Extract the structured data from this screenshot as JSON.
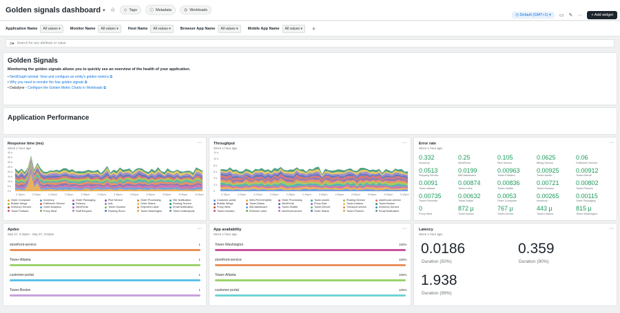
{
  "header": {
    "title": "Golden signals dashboard",
    "tags": "Tags",
    "metadata": "Metadata",
    "workloads": "Workloads",
    "timezone": "Default (GMT+1)",
    "add_widget": "+ Add widget"
  },
  "filters": [
    {
      "label": "Application Name",
      "value": "All values"
    },
    {
      "label": "Monitor Name",
      "value": "All values"
    },
    {
      "label": "Host Name",
      "value": "All values"
    },
    {
      "label": "Browser App Name",
      "value": "All values"
    },
    {
      "label": "Mobile App Name",
      "value": "All values"
    }
  ],
  "search": {
    "placeholder": "Search for any attribute or value"
  },
  "golden": {
    "title": "Golden Signals",
    "subtitle": "Monitoring the golden signals allows you to quickly see an overview of the health of your application.",
    "links": [
      {
        "text": "NerdGraph tutorial: View and configure an entity's golden metrics"
      },
      {
        "text": "Why you need to monitor the four golden signals"
      },
      {
        "prefix": "Datadyne - ",
        "text": "Configure the Golden Metric Charts in Workloads"
      }
    ]
  },
  "section": {
    "title": "Application Performance"
  },
  "response": {
    "title": "Response time (ms)",
    "since": "Since 1 hour ago",
    "yticks": [
      "40 k",
      "35 k",
      "30 k",
      "25 k",
      "20 k",
      "15 k",
      "10 k",
      "5 k",
      "0 k"
    ],
    "xticks": [
      "2:15pm",
      "2:20pm",
      "2:25pm",
      "2:30pm",
      "2:35pm",
      "2:40pm",
      "2:45pm",
      "2:50pm",
      "2:55pm",
      "3:00pm",
      "3:05pm",
      "3:10pm"
    ],
    "legend": [
      "Order Composer",
      "Inventory",
      "Order Packaging",
      "Pilot Service",
      "Order Processing",
      "Site Notification",
      "Builder Wings",
      "Fulfillment Service",
      "Delivery",
      "Ads",
      "Order Status",
      "Routing Service",
      "Inventory Service",
      "Order Analytics",
      "WebPortal",
      "Tower Houston",
      "Shipment Label",
      "Email Notification",
      "Tower Portland",
      "Proxy West",
      "Staff Request",
      "Packing Room",
      "Tower Washington",
      "Tower Indianapolis"
    ],
    "legend_colors": [
      "#e8a33d",
      "#5b8fd6",
      "#c95d9b",
      "#7a5ea6",
      "#e37b4f",
      "#3aa6a0",
      "#9bbf3c",
      "#d05f5f",
      "#4d5fb3",
      "#8e7cc3",
      "#e2c044",
      "#2f8f6f",
      "#b1562b",
      "#5aa1d8",
      "#a56cc1",
      "#6bb86b",
      "#d98c3f",
      "#4a90a4",
      "#c94f7c",
      "#7fa84a",
      "#b37bd1",
      "#3f7fbf",
      "#d4a84c",
      "#6c8f9e"
    ]
  },
  "throughput": {
    "title": "Throughput",
    "since": "Since 1 hour ago",
    "yticks": [
      "12 k",
      "10 k",
      "8 k",
      "6 k",
      "4 k",
      "2 k",
      "0"
    ],
    "xticks": [
      "2:15pm",
      "2:20pm",
      "2:25pm",
      "2:30pm",
      "2:35pm",
      "2:40pm",
      "2:45pm",
      "2:50pm",
      "2:55pm",
      "3:00pm",
      "3:05pm",
      "3:10pm"
    ],
    "legend": [
      "Customer-portal",
      "Web-Perf-Infra(lite)",
      "Order Processing",
      "Tower-Austin",
      "Routing Service",
      "warehouse-service",
      "Builder Wings",
      "Tower-Dallas",
      "WebPortal",
      "Proxy East",
      "Tower-Indiana",
      "Tower-Boston",
      "Proxy West",
      "ABCdashboard",
      "Tower-Seattle",
      "Tower-Denver",
      "Transport service",
      "Inventory Service",
      "Tower-Houston",
      "Ethernet Label",
      "storefront-service",
      "Order Status",
      "Tower-Phoenix",
      "Email Notification"
    ],
    "legend_colors": [
      "#5b8fd6",
      "#e8a33d",
      "#c95d9b",
      "#3aa6a0",
      "#9bbf3c",
      "#e37b4f",
      "#7a5ea6",
      "#d05f5f",
      "#4d5fb3",
      "#8e7cc3",
      "#e2c044",
      "#2f8f6f",
      "#b1562b",
      "#5aa1d8",
      "#a56cc1",
      "#6bb86b",
      "#d98c3f",
      "#4a90a4",
      "#c94f7c",
      "#7fa84a",
      "#b37bd1",
      "#3f7fbf",
      "#d4a84c",
      "#6c8f9e"
    ]
  },
  "error_rate": {
    "title": "Error rate",
    "since": "Since 1 hour ago",
    "cells": [
      {
        "v": "0.332",
        "l": "Inventory"
      },
      {
        "v": "0.25",
        "l": "WebPortal"
      },
      {
        "v": "0.105",
        "l": "Pilot Service"
      },
      {
        "v": "0.0625",
        "l": "Billing Service"
      },
      {
        "v": "0.06",
        "l": "Fulfillment Service"
      },
      {
        "v": "0.0513",
        "l": "Shipping Service"
      },
      {
        "v": "0.0199",
        "l": "ABCdashboard"
      },
      {
        "v": "0.00963",
        "l": "Tower-Portland"
      },
      {
        "v": "0.00925",
        "l": "Tower-Austin"
      },
      {
        "v": "0.00912",
        "l": "Tower-Detroit"
      },
      {
        "v": "0.0091",
        "l": "Tower-Atlanta"
      },
      {
        "v": "0.00874",
        "l": "Tower-Irvine"
      },
      {
        "v": "0.00836",
        "l": "Tower-Seattle"
      },
      {
        "v": "0.00721",
        "l": "Tower-Houston"
      },
      {
        "v": "0.00802",
        "l": "Tower-Phoenix"
      },
      {
        "v": "0.00735",
        "l": "Tower-Riverside"
      },
      {
        "v": "0.00632",
        "l": "Tower-Dallas"
      },
      {
        "v": "0.0053",
        "l": "Order Composer"
      },
      {
        "v": "0.00265",
        "l": "Inventory"
      },
      {
        "v": "0.00115",
        "l": "Order Packaging"
      },
      {
        "v": "0",
        "l": "Proxy West"
      },
      {
        "v": "872 µ",
        "l": "Tower-Boston"
      },
      {
        "v": "767 µ",
        "l": "Tower-Denver"
      },
      {
        "v": "443 µ",
        "l": "Tower-Indiana"
      },
      {
        "v": "815 µ",
        "l": "Tower-Washington"
      }
    ]
  },
  "apdex": {
    "title": "Apdex",
    "since": "Sep 27, 2:42pm - Sep 27, 3:42pm",
    "rows": [
      {
        "name": "storefront-service",
        "value": "1",
        "fraction": 1.0,
        "color": "#e8905a"
      },
      {
        "name": "Tower-Atlanta",
        "value": "1",
        "fraction": 1.0,
        "color": "#9ad36a"
      },
      {
        "name": "customer-portal",
        "value": "1",
        "fraction": 1.0,
        "color": "#5bc0e6"
      },
      {
        "name": "Tower-Boston",
        "value": "1",
        "fraction": 1.0,
        "color": "#c9a0dc"
      }
    ]
  },
  "availability": {
    "title": "App availability",
    "since": "Since 1 hour ago",
    "rows": [
      {
        "name": "Tower-Washington",
        "value": "100%",
        "fraction": 1.0,
        "color": "#c94f9b"
      },
      {
        "name": "storefront-service",
        "value": "100%",
        "fraction": 1.0,
        "color": "#e8905a"
      },
      {
        "name": "Tower-Atlanta",
        "value": "100%",
        "fraction": 1.0,
        "color": "#9ad36a"
      },
      {
        "name": "customer-portal",
        "value": "100%",
        "fraction": 1.0,
        "color": "#6fd3d3"
      }
    ]
  },
  "latency": {
    "title": "Latency",
    "since": "Since 1 hour ago",
    "items": [
      {
        "value": "0.0186",
        "label": "Duration (50%)"
      },
      {
        "value": "0.359",
        "label": "Duration (90%)"
      },
      {
        "value": "1.938",
        "label": "Duration (99%)"
      }
    ]
  }
}
